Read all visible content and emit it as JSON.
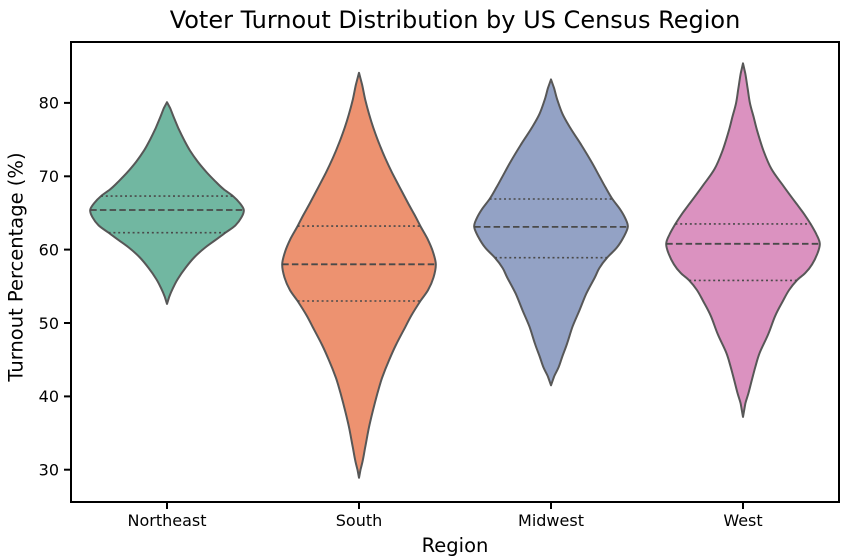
{
  "chart_data": {
    "type": "violin",
    "title": "Voter Turnout Distribution by US Census Region",
    "xlabel": "Region",
    "ylabel": "Turnout Percentage (%)",
    "categories": [
      "Northeast",
      "South",
      "Midwest",
      "West"
    ],
    "y_ticks": [
      30,
      40,
      50,
      60,
      70,
      80
    ],
    "ylim": [
      25.6,
      88.3
    ],
    "grid": "off",
    "legend": "none",
    "inner": "quartile",
    "background_color": "#ffffff",
    "spine_color": "#000000",
    "edge_color": "#575757",
    "inner_line_color": "#4a4a4a",
    "violins": [
      {
        "category": "Northeast",
        "fill_color": "#71b7a1",
        "min": 52.6,
        "max": 80.1,
        "q1": 62.3,
        "median": 65.4,
        "q3": 67.3,
        "profile": [
          [
            80.1,
            0
          ],
          [
            79.3,
            0.04
          ],
          [
            78,
            0.09
          ],
          [
            76.5,
            0.15
          ],
          [
            75,
            0.22
          ],
          [
            73.5,
            0.3
          ],
          [
            72,
            0.4
          ],
          [
            70.5,
            0.52
          ],
          [
            69.3,
            0.63
          ],
          [
            68.3,
            0.73
          ],
          [
            67.3,
            0.86
          ],
          [
            66.3,
            0.95
          ],
          [
            65.4,
            1
          ],
          [
            64.4,
            0.97
          ],
          [
            63.3,
            0.89
          ],
          [
            62.3,
            0.76
          ],
          [
            61.3,
            0.63
          ],
          [
            60.3,
            0.5
          ],
          [
            59,
            0.36
          ],
          [
            57.5,
            0.24
          ],
          [
            56,
            0.14
          ],
          [
            54.8,
            0.08
          ],
          [
            53.6,
            0.03
          ],
          [
            52.6,
            0
          ]
        ]
      },
      {
        "category": "South",
        "fill_color": "#ed9270",
        "min": 28.9,
        "max": 84.1,
        "q1": 53.0,
        "median": 58.0,
        "q3": 63.2,
        "profile": [
          [
            84.1,
            0
          ],
          [
            82.5,
            0.04
          ],
          [
            80.5,
            0.08
          ],
          [
            78.5,
            0.13
          ],
          [
            76.5,
            0.19
          ],
          [
            74.5,
            0.26
          ],
          [
            72.5,
            0.34
          ],
          [
            70.5,
            0.43
          ],
          [
            68.5,
            0.53
          ],
          [
            66.5,
            0.63
          ],
          [
            64.8,
            0.72
          ],
          [
            63.2,
            0.8
          ],
          [
            61.5,
            0.89
          ],
          [
            59.8,
            0.96
          ],
          [
            58,
            1
          ],
          [
            56.2,
            0.97
          ],
          [
            54.5,
            0.9
          ],
          [
            53,
            0.8
          ],
          [
            51,
            0.68
          ],
          [
            49.4,
            0.6
          ],
          [
            47,
            0.48
          ],
          [
            44.9,
            0.39
          ],
          [
            42.5,
            0.3
          ],
          [
            40.4,
            0.24
          ],
          [
            38,
            0.18
          ],
          [
            35.8,
            0.13
          ],
          [
            33,
            0.08
          ],
          [
            31.3,
            0.05
          ],
          [
            30,
            0.02
          ],
          [
            28.9,
            0
          ]
        ]
      },
      {
        "category": "Midwest",
        "fill_color": "#93a2c5",
        "min": 41.5,
        "max": 83.2,
        "q1": 58.9,
        "median": 63.1,
        "q3": 66.9,
        "profile": [
          [
            83.2,
            0
          ],
          [
            82,
            0.04
          ],
          [
            80.5,
            0.08
          ],
          [
            78.5,
            0.15
          ],
          [
            76.6,
            0.25
          ],
          [
            74.5,
            0.38
          ],
          [
            72.1,
            0.52
          ],
          [
            69.8,
            0.64
          ],
          [
            68.3,
            0.72
          ],
          [
            66.9,
            0.8
          ],
          [
            65.5,
            0.9
          ],
          [
            64.2,
            0.97
          ],
          [
            63.1,
            1
          ],
          [
            61.8,
            0.95
          ],
          [
            60.3,
            0.86
          ],
          [
            58.9,
            0.73
          ],
          [
            57.5,
            0.63
          ],
          [
            56.2,
            0.57
          ],
          [
            54,
            0.46
          ],
          [
            51.7,
            0.37
          ],
          [
            49.5,
            0.28
          ],
          [
            47.2,
            0.21
          ],
          [
            45.5,
            0.15
          ],
          [
            44,
            0.1
          ],
          [
            42.7,
            0.04
          ],
          [
            41.5,
            0
          ]
        ]
      },
      {
        "category": "West",
        "fill_color": "#db92c0",
        "min": 37.2,
        "max": 85.4,
        "q1": 55.8,
        "median": 60.8,
        "q3": 63.5,
        "profile": [
          [
            85.4,
            0
          ],
          [
            84,
            0.03
          ],
          [
            82,
            0.06
          ],
          [
            80,
            0.09
          ],
          [
            78,
            0.14
          ],
          [
            76,
            0.19
          ],
          [
            73.4,
            0.27
          ],
          [
            71,
            0.37
          ],
          [
            68.9,
            0.51
          ],
          [
            66.2,
            0.7
          ],
          [
            64.8,
            0.8
          ],
          [
            63.5,
            0.88
          ],
          [
            62,
            0.96
          ],
          [
            60.8,
            1
          ],
          [
            59.5,
            0.97
          ],
          [
            58,
            0.9
          ],
          [
            56.8,
            0.81
          ],
          [
            55.8,
            0.7
          ],
          [
            54.5,
            0.6
          ],
          [
            53,
            0.52
          ],
          [
            51,
            0.42
          ],
          [
            48.5,
            0.33
          ],
          [
            46,
            0.22
          ],
          [
            44,
            0.16
          ],
          [
            42,
            0.11
          ],
          [
            40.4,
            0.07
          ],
          [
            39,
            0.03
          ],
          [
            37.2,
            0
          ]
        ]
      }
    ]
  }
}
